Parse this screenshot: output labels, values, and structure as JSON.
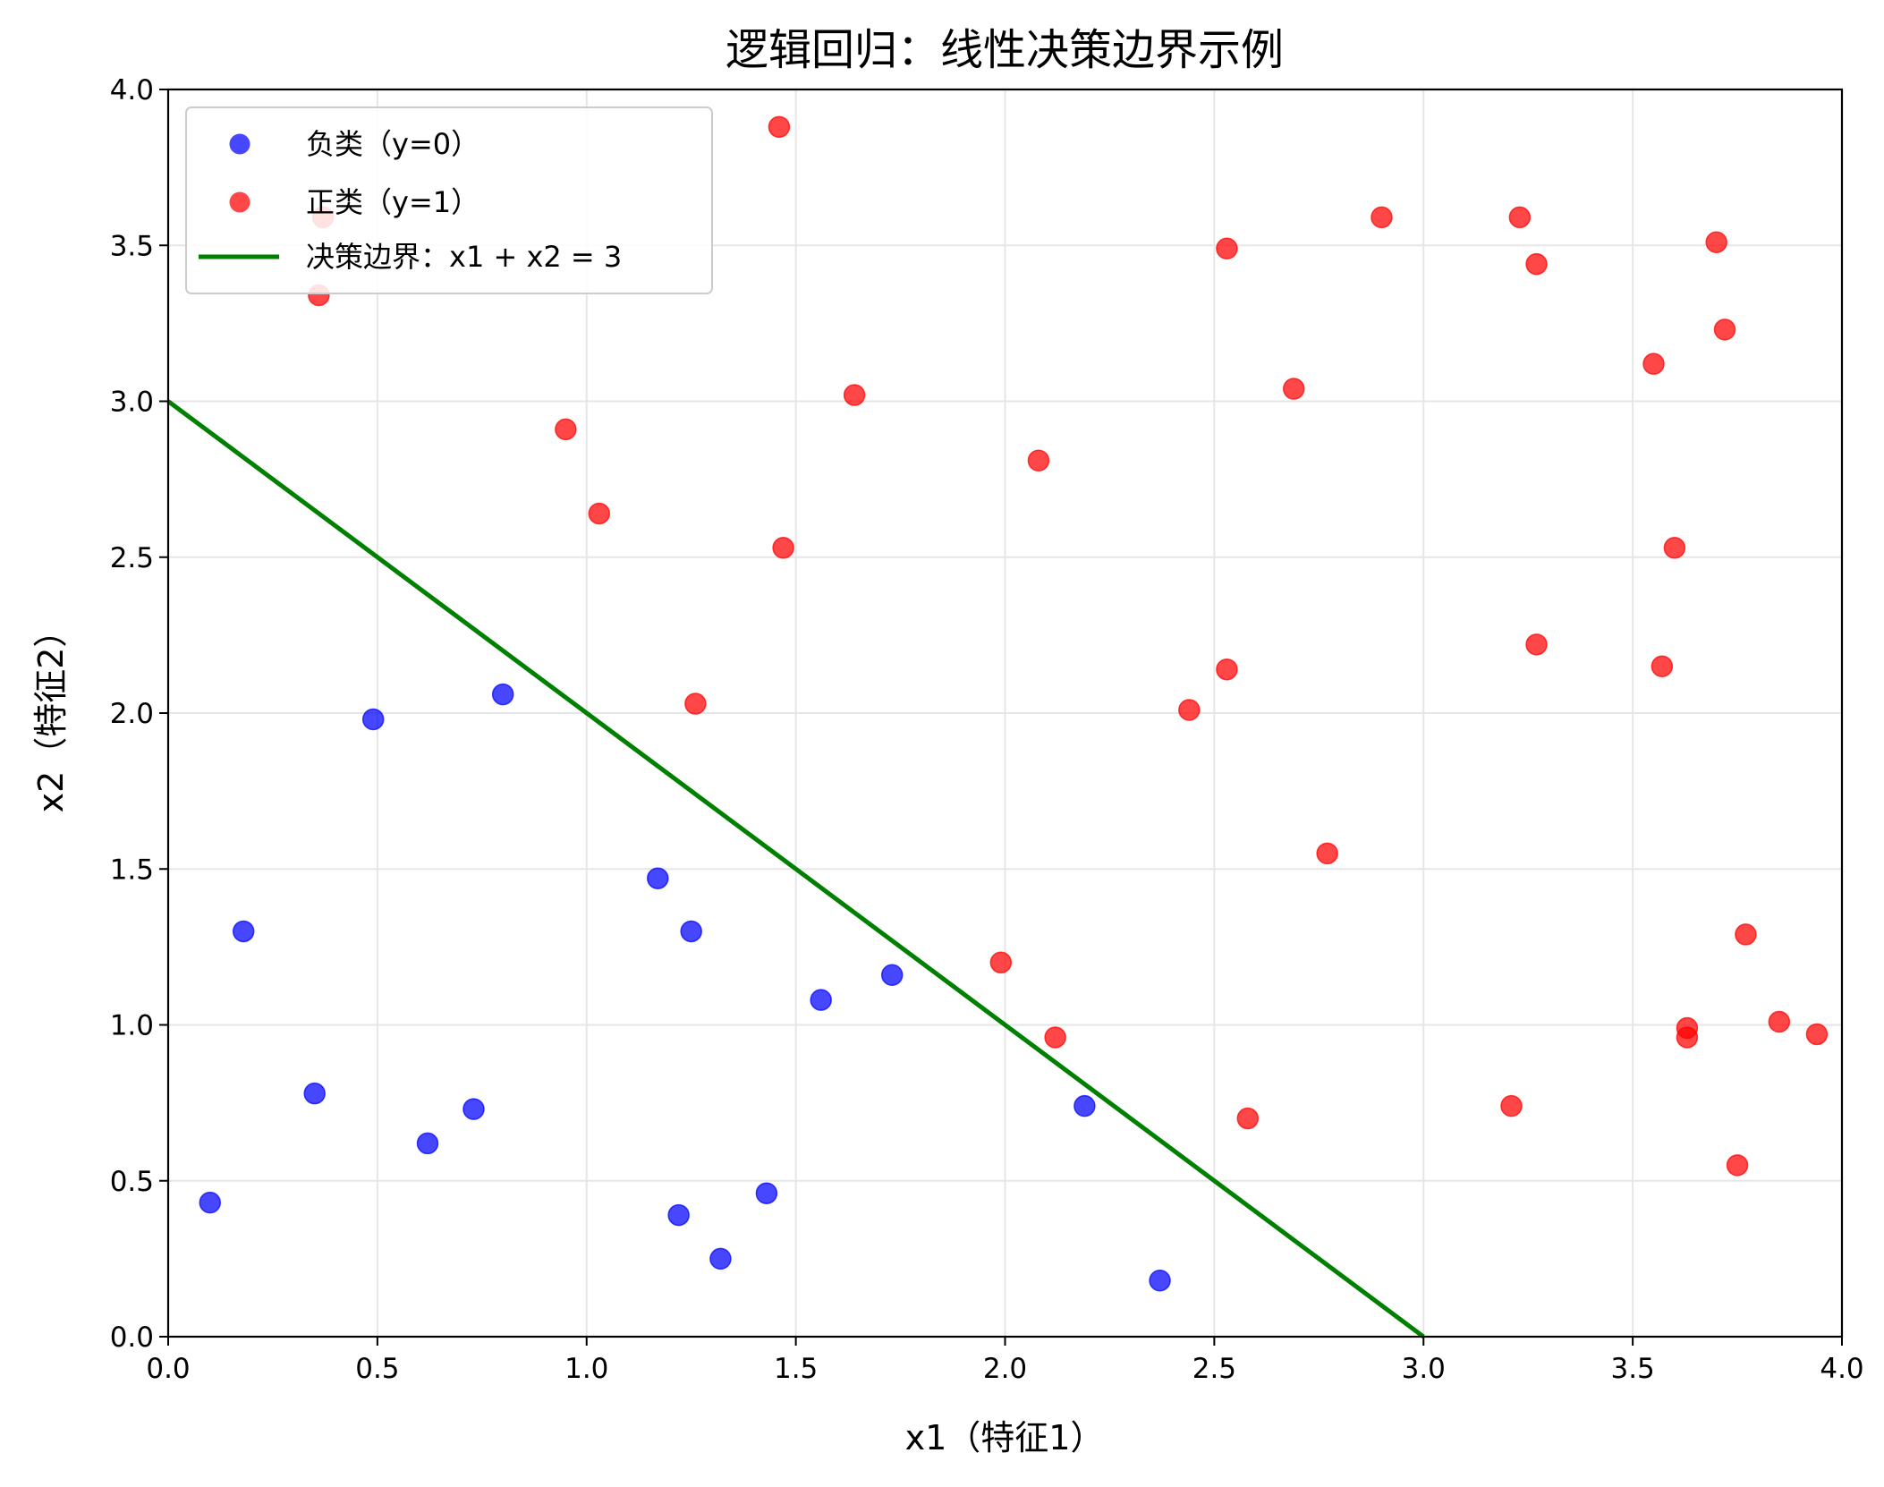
{
  "chart_data": {
    "type": "scatter",
    "title": "逻辑回归：线性决策边界示例",
    "xlabel": "x1（特征1）",
    "ylabel": "x2（特征2）",
    "xlim": [
      0.0,
      4.0
    ],
    "ylim": [
      0.0,
      4.0
    ],
    "xticks": [
      "0.0",
      "0.5",
      "1.0",
      "1.5",
      "2.0",
      "2.5",
      "3.0",
      "3.5",
      "4.0"
    ],
    "yticks": [
      "0.0",
      "0.5",
      "1.0",
      "1.5",
      "2.0",
      "2.5",
      "3.0",
      "3.5",
      "4.0"
    ],
    "grid": true,
    "legend_position": "top-left",
    "series": [
      {
        "name": "负类（y=0）",
        "kind": "scatter",
        "color": "#0000ff",
        "points": [
          [
            0.1,
            0.43
          ],
          [
            0.18,
            1.3
          ],
          [
            0.35,
            0.78
          ],
          [
            0.49,
            1.98
          ],
          [
            0.62,
            0.62
          ],
          [
            0.73,
            0.73
          ],
          [
            0.8,
            2.06
          ],
          [
            1.17,
            1.47
          ],
          [
            1.22,
            0.39
          ],
          [
            1.25,
            1.3
          ],
          [
            1.32,
            0.25
          ],
          [
            1.43,
            0.46
          ],
          [
            1.56,
            1.08
          ],
          [
            1.73,
            1.16
          ],
          [
            2.19,
            0.74
          ],
          [
            2.37,
            0.18
          ]
        ]
      },
      {
        "name": "正类（y=1）",
        "kind": "scatter",
        "color": "#ff0000",
        "points": [
          [
            0.36,
            3.34
          ],
          [
            0.37,
            3.59
          ],
          [
            0.95,
            2.91
          ],
          [
            1.03,
            2.64
          ],
          [
            1.26,
            2.03
          ],
          [
            1.46,
            3.88
          ],
          [
            1.47,
            2.53
          ],
          [
            1.64,
            3.02
          ],
          [
            1.99,
            1.2
          ],
          [
            2.08,
            2.81
          ],
          [
            2.12,
            0.96
          ],
          [
            2.44,
            2.01
          ],
          [
            2.53,
            2.14
          ],
          [
            2.53,
            3.49
          ],
          [
            2.58,
            0.7
          ],
          [
            2.69,
            3.04
          ],
          [
            2.77,
            1.55
          ],
          [
            2.9,
            3.59
          ],
          [
            3.21,
            0.74
          ],
          [
            3.23,
            3.59
          ],
          [
            3.27,
            3.44
          ],
          [
            3.27,
            2.22
          ],
          [
            3.55,
            3.12
          ],
          [
            3.57,
            2.15
          ],
          [
            3.6,
            2.53
          ],
          [
            3.63,
            0.99
          ],
          [
            3.63,
            0.96
          ],
          [
            3.7,
            3.51
          ],
          [
            3.72,
            3.23
          ],
          [
            3.75,
            0.55
          ],
          [
            3.77,
            1.29
          ],
          [
            3.85,
            1.01
          ],
          [
            3.94,
            0.97
          ]
        ]
      },
      {
        "name": "决策边界：x1 + x2 = 3",
        "kind": "line",
        "color": "#008000",
        "x": [
          0.0,
          3.0
        ],
        "y": [
          3.0,
          0.0
        ]
      }
    ]
  }
}
